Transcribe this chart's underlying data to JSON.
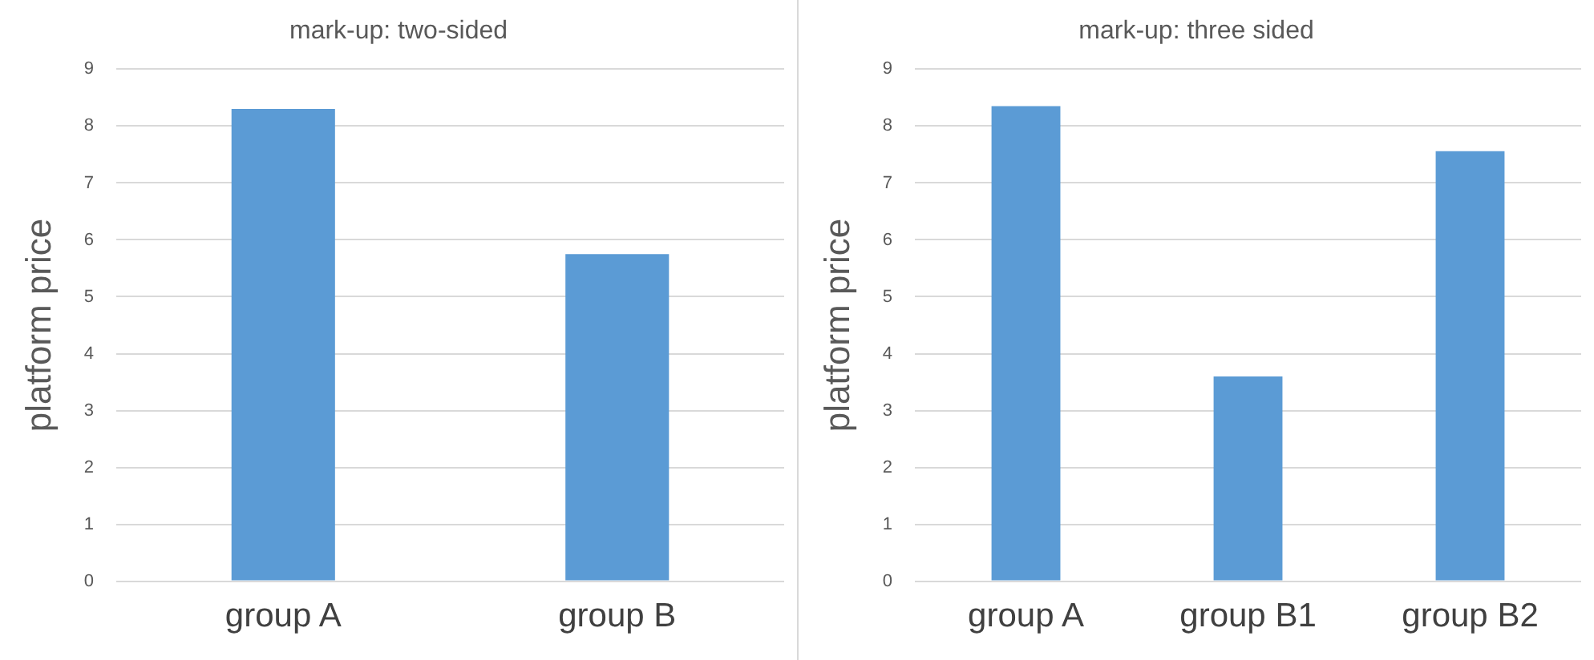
{
  "chart_data": [
    {
      "type": "bar",
      "title": "mark-up: two-sided",
      "ylabel": "platform price",
      "categories": [
        "group A",
        "group B"
      ],
      "series": [
        {
          "color": "#5b9bd5",
          "values": [
            8.3,
            5.75
          ]
        }
      ],
      "ylim": [
        0,
        9
      ],
      "yticks": [
        0,
        1,
        2,
        3,
        4,
        5,
        6,
        7,
        8,
        9
      ],
      "grid": "y",
      "legend": false
    },
    {
      "type": "bar",
      "title": "mark-up: three sided",
      "ylabel": "platform price",
      "categories": [
        "group A",
        "group B1",
        "group B2"
      ],
      "series": [
        {
          "color": "#5b9bd5",
          "values": [
            8.35,
            3.6,
            7.56
          ]
        }
      ],
      "ylim": [
        0,
        9
      ],
      "yticks": [
        0,
        1,
        2,
        3,
        4,
        5,
        6,
        7,
        8,
        9
      ],
      "grid": "y",
      "legend": false
    }
  ]
}
